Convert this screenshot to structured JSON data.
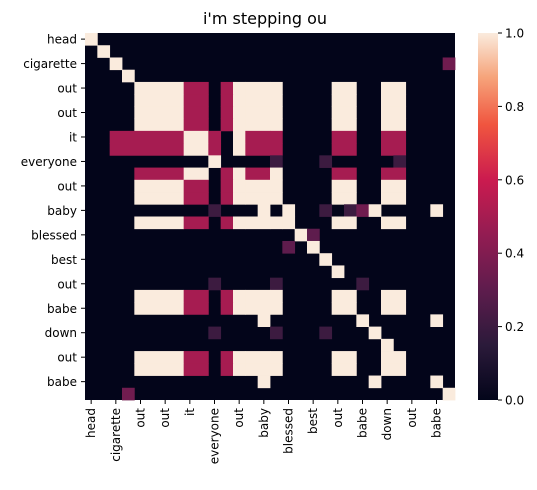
{
  "chart_data": {
    "type": "heatmap",
    "title": "i'm stepping ou",
    "row_labels": [
      "head",
      "cigarette",
      "out",
      "out",
      "it",
      "everyone",
      "out",
      "baby",
      "blessed",
      "best",
      "out",
      "babe",
      "down",
      "out",
      "babe"
    ],
    "col_labels": [
      "head",
      "cigarette",
      "out",
      "out",
      "it",
      "everyone",
      "out",
      "baby",
      "blessed",
      "best",
      "out",
      "babe",
      "down",
      "out",
      "babe"
    ],
    "y_ticks_shown": [
      "head",
      "cigarette",
      "out",
      "out",
      "it",
      "everyone",
      "out",
      "baby",
      "blessed",
      "best",
      "out",
      "babe",
      "down",
      "out",
      "babe"
    ],
    "x_ticks_shown": [
      "head",
      "cigarette",
      "out",
      "out",
      "it",
      "everyone",
      "out",
      "baby",
      "blessed",
      "best",
      "out",
      "babe",
      "down",
      "out",
      "babe"
    ],
    "colorbar": {
      "min": 0.0,
      "max": 1.0,
      "ticks": [
        "0.0",
        "0.2",
        "0.4",
        "0.6",
        "0.8",
        "1.0"
      ],
      "colormap": "rocket"
    },
    "grid": 30,
    "rows": [
      {
        "row": 0,
        "segments": [
          [
            0,
            1,
            1.0
          ]
        ]
      },
      {
        "row": 1,
        "segments": [
          [
            1,
            2,
            1.0
          ]
        ]
      },
      {
        "row": 2,
        "segments": [
          [
            2,
            3,
            1.0
          ],
          [
            29,
            30,
            0.35
          ]
        ]
      },
      {
        "row": 3,
        "segments": [
          [
            3,
            4,
            1.0
          ]
        ]
      },
      {
        "row": 4,
        "segments": [
          [
            4,
            8,
            1.0
          ],
          [
            8,
            10,
            0.5
          ],
          [
            11,
            12,
            0.5
          ],
          [
            12,
            13,
            1.0
          ],
          [
            13,
            15,
            1.0
          ],
          [
            15,
            16,
            1.0
          ],
          [
            20,
            22,
            1.0
          ],
          [
            24,
            26,
            1.0
          ]
        ]
      },
      {
        "row": 5,
        "segments": [
          [
            4,
            8,
            1.0
          ],
          [
            8,
            10,
            0.5
          ],
          [
            11,
            12,
            0.5
          ],
          [
            12,
            13,
            1.0
          ],
          [
            13,
            15,
            1.0
          ],
          [
            15,
            16,
            1.0
          ],
          [
            20,
            22,
            1.0
          ],
          [
            24,
            26,
            1.0
          ]
        ]
      },
      {
        "row": 6,
        "segments": [
          [
            4,
            8,
            1.0
          ],
          [
            8,
            10,
            0.5
          ],
          [
            11,
            12,
            0.5
          ],
          [
            12,
            13,
            1.0
          ],
          [
            13,
            15,
            1.0
          ],
          [
            15,
            16,
            1.0
          ],
          [
            20,
            22,
            1.0
          ],
          [
            24,
            26,
            1.0
          ]
        ]
      },
      {
        "row": 7,
        "segments": [
          [
            4,
            8,
            1.0
          ],
          [
            8,
            10,
            0.5
          ],
          [
            11,
            12,
            0.5
          ],
          [
            12,
            13,
            1.0
          ],
          [
            13,
            15,
            1.0
          ],
          [
            15,
            16,
            1.0
          ],
          [
            20,
            22,
            1.0
          ],
          [
            24,
            26,
            1.0
          ]
        ]
      },
      {
        "row": 8,
        "segments": [
          [
            2,
            8,
            0.5
          ],
          [
            8,
            10,
            1.0
          ],
          [
            10,
            11,
            0.5
          ],
          [
            12,
            13,
            1.0
          ],
          [
            13,
            15,
            0.5
          ],
          [
            15,
            16,
            0.5
          ],
          [
            20,
            22,
            0.5
          ],
          [
            24,
            26,
            0.5
          ]
        ]
      },
      {
        "row": 9,
        "segments": [
          [
            2,
            8,
            0.5
          ],
          [
            8,
            10,
            1.0
          ],
          [
            10,
            11,
            0.5
          ],
          [
            12,
            13,
            1.0
          ],
          [
            13,
            15,
            0.5
          ],
          [
            15,
            16,
            0.5
          ],
          [
            20,
            22,
            0.5
          ],
          [
            24,
            26,
            0.5
          ]
        ]
      },
      {
        "row": 10,
        "segments": [
          [
            10,
            11,
            1.0
          ],
          [
            15,
            16,
            0.2
          ],
          [
            19,
            20,
            0.2
          ],
          [
            25,
            26,
            0.2
          ]
        ]
      },
      {
        "row": 11,
        "segments": [
          [
            4,
            8,
            0.5
          ],
          [
            8,
            10,
            1.0
          ],
          [
            11,
            12,
            0.5
          ],
          [
            12,
            13,
            1.0
          ],
          [
            13,
            15,
            0.5
          ],
          [
            15,
            16,
            1.0
          ],
          [
            20,
            22,
            0.5
          ],
          [
            24,
            26,
            0.5
          ]
        ]
      },
      {
        "row": 12,
        "segments": [
          [
            4,
            8,
            1.0
          ],
          [
            8,
            10,
            0.5
          ],
          [
            11,
            12,
            0.5
          ],
          [
            12,
            13,
            1.0
          ],
          [
            13,
            15,
            1.0
          ],
          [
            15,
            16,
            1.0
          ],
          [
            20,
            22,
            1.0
          ],
          [
            24,
            26,
            1.0
          ]
        ]
      },
      {
        "row": 13,
        "segments": [
          [
            4,
            8,
            1.0
          ],
          [
            8,
            10,
            0.5
          ],
          [
            11,
            12,
            0.5
          ],
          [
            12,
            13,
            1.0
          ],
          [
            13,
            15,
            1.0
          ],
          [
            15,
            16,
            1.0
          ],
          [
            20,
            22,
            1.0
          ],
          [
            24,
            26,
            1.0
          ]
        ]
      },
      {
        "row": 14,
        "segments": [
          [
            10,
            11,
            0.2
          ],
          [
            14,
            15,
            1.0
          ],
          [
            16,
            17,
            1.0
          ],
          [
            19,
            20,
            0.2
          ],
          [
            21,
            22,
            0.2
          ],
          [
            22,
            23,
            0.35
          ],
          [
            23,
            24,
            1.0
          ],
          [
            28,
            29,
            1.0
          ]
        ]
      },
      {
        "row": 15,
        "segments": [
          [
            4,
            8,
            1.0
          ],
          [
            8,
            10,
            0.5
          ],
          [
            11,
            12,
            0.5
          ],
          [
            12,
            13,
            1.0
          ],
          [
            13,
            15,
            1.0
          ],
          [
            15,
            16,
            1.0
          ],
          [
            16,
            17,
            1.0
          ],
          [
            20,
            22,
            1.0
          ],
          [
            24,
            26,
            1.0
          ]
        ]
      },
      {
        "row": 16,
        "segments": [
          [
            17,
            18,
            1.0
          ],
          [
            18,
            19,
            0.3
          ]
        ]
      },
      {
        "row": 17,
        "segments": [
          [
            16,
            17,
            0.3
          ],
          [
            18,
            19,
            1.0
          ]
        ]
      },
      {
        "row": 18,
        "segments": [
          [
            19,
            20,
            1.0
          ]
        ]
      },
      {
        "row": 19,
        "segments": [
          [
            20,
            21,
            1.0
          ]
        ]
      },
      {
        "row": 20,
        "segments": [
          [
            10,
            11,
            0.2
          ],
          [
            15,
            16,
            0.2
          ],
          [
            22,
            23,
            0.2
          ]
        ]
      },
      {
        "row": 21,
        "segments": [
          [
            4,
            8,
            1.0
          ],
          [
            8,
            10,
            0.5
          ],
          [
            11,
            12,
            0.5
          ],
          [
            12,
            13,
            1.0
          ],
          [
            13,
            15,
            1.0
          ],
          [
            15,
            16,
            1.0
          ],
          [
            20,
            22,
            1.0
          ],
          [
            24,
            26,
            1.0
          ]
        ]
      },
      {
        "row": 22,
        "segments": [
          [
            4,
            8,
            1.0
          ],
          [
            8,
            10,
            0.5
          ],
          [
            11,
            12,
            0.5
          ],
          [
            12,
            13,
            1.0
          ],
          [
            13,
            15,
            1.0
          ],
          [
            15,
            16,
            1.0
          ],
          [
            20,
            22,
            1.0
          ],
          [
            24,
            26,
            1.0
          ]
        ]
      },
      {
        "row": 23,
        "segments": [
          [
            14,
            15,
            1.0
          ],
          [
            22,
            23,
            1.0
          ],
          [
            28,
            29,
            1.0
          ]
        ]
      },
      {
        "row": 24,
        "segments": [
          [
            10,
            11,
            0.2
          ],
          [
            15,
            16,
            0.2
          ],
          [
            19,
            20,
            0.2
          ],
          [
            23,
            24,
            1.0
          ]
        ]
      },
      {
        "row": 25,
        "segments": [
          [
            24,
            25,
            1.0
          ]
        ]
      },
      {
        "row": 26,
        "segments": [
          [
            4,
            8,
            1.0
          ],
          [
            8,
            10,
            0.5
          ],
          [
            11,
            12,
            0.5
          ],
          [
            12,
            13,
            1.0
          ],
          [
            13,
            15,
            1.0
          ],
          [
            15,
            16,
            1.0
          ],
          [
            20,
            22,
            1.0
          ],
          [
            24,
            26,
            1.0
          ]
        ]
      },
      {
        "row": 27,
        "segments": [
          [
            4,
            8,
            1.0
          ],
          [
            8,
            10,
            0.5
          ],
          [
            11,
            12,
            0.5
          ],
          [
            12,
            13,
            1.0
          ],
          [
            13,
            15,
            1.0
          ],
          [
            15,
            16,
            1.0
          ],
          [
            20,
            22,
            1.0
          ],
          [
            24,
            26,
            1.0
          ]
        ]
      },
      {
        "row": 28,
        "segments": [
          [
            14,
            15,
            1.0
          ],
          [
            23,
            24,
            1.0
          ],
          [
            28,
            29,
            1.0
          ]
        ]
      },
      {
        "row": 29,
        "segments": [
          [
            3,
            4,
            0.35
          ],
          [
            29,
            30,
            1.0
          ]
        ]
      }
    ]
  }
}
